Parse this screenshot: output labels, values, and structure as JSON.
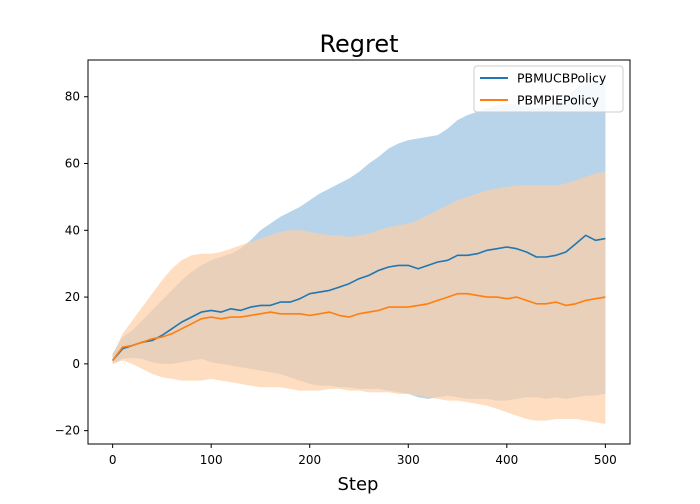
{
  "chart_data": {
    "type": "line",
    "title": "Regret",
    "xlabel": "Step",
    "ylabel": "",
    "xlim": [
      -25,
      525
    ],
    "ylim": [
      -24,
      91
    ],
    "xticks": [
      0,
      100,
      200,
      300,
      400,
      500
    ],
    "yticks": [
      -20,
      0,
      20,
      40,
      60,
      80
    ],
    "grid": false,
    "legend_position": "top-right",
    "x": [
      0,
      10,
      20,
      30,
      40,
      50,
      60,
      70,
      80,
      90,
      100,
      110,
      120,
      130,
      140,
      150,
      160,
      170,
      180,
      190,
      200,
      210,
      220,
      230,
      240,
      250,
      260,
      270,
      280,
      290,
      300,
      310,
      320,
      330,
      340,
      350,
      360,
      370,
      380,
      390,
      400,
      410,
      420,
      430,
      440,
      450,
      460,
      470,
      480,
      490,
      500
    ],
    "series": [
      {
        "name": "PBMUCBPolicy",
        "color": "#1f77b4",
        "band_color": "#b8d4ea",
        "values": [
          1,
          4.5,
          5.5,
          6.5,
          7,
          8.5,
          10.5,
          12.5,
          14,
          15.5,
          16,
          15.5,
          16.5,
          16,
          17,
          17.5,
          17.5,
          18.5,
          18.5,
          19.5,
          21,
          21.5,
          22,
          23,
          24,
          25.5,
          26.5,
          28,
          29,
          29.5,
          29.5,
          28.5,
          29.5,
          30.5,
          31,
          32.5,
          32.5,
          33,
          34,
          34.5,
          35,
          34.5,
          33.5,
          32,
          32,
          32.5,
          33.5,
          36,
          38.5,
          37,
          37.5
        ],
        "upper": [
          3,
          8,
          10,
          13,
          16,
          19,
          22,
          25,
          27.5,
          29.5,
          31,
          32,
          33,
          34.5,
          37,
          40,
          42,
          44,
          45.5,
          47,
          49,
          51,
          52.5,
          54,
          55.5,
          57.5,
          60,
          62,
          64.5,
          66,
          67,
          67.5,
          68,
          68.5,
          70.5,
          73,
          74.5,
          75.5,
          76.5,
          77.5,
          78,
          77.5,
          77,
          76.5,
          77,
          78.5,
          80,
          82.5,
          84,
          84.5,
          85
        ],
        "lower": [
          0,
          1.5,
          1.8,
          1.5,
          0.5,
          0,
          0,
          0.5,
          1,
          1.5,
          0.5,
          0,
          -0.5,
          -1,
          -1.5,
          -2,
          -2.5,
          -3,
          -4,
          -5,
          -6,
          -6.5,
          -6.5,
          -7,
          -7,
          -7.5,
          -7.5,
          -7.5,
          -8,
          -8.5,
          -9,
          -10,
          -10.5,
          -10,
          -9.5,
          -10,
          -10.5,
          -10.5,
          -10.5,
          -11,
          -11,
          -10.5,
          -10,
          -10,
          -10.5,
          -10,
          -10.5,
          -10,
          -9.5,
          -9.5,
          -9
        ]
      },
      {
        "name": "PBMPIEPolicy",
        "color": "#ff7f0e",
        "band_color": "#fdcfa6",
        "values": [
          1,
          5,
          5.5,
          6.5,
          7.5,
          8,
          9,
          10.5,
          12,
          13.5,
          14,
          13.5,
          14,
          14,
          14.5,
          15,
          15.5,
          15,
          15,
          15,
          14.5,
          15,
          15.5,
          14.5,
          14,
          15,
          15.5,
          16,
          17,
          17,
          17,
          17.5,
          18,
          19,
          20,
          21,
          21,
          20.5,
          20,
          20,
          19.5,
          20,
          19,
          18,
          18,
          18.5,
          17.5,
          18,
          19,
          19.5,
          20
        ],
        "upper": [
          2.5,
          9,
          13,
          17,
          21,
          25,
          28.5,
          31,
          32.5,
          33,
          33,
          33.5,
          34.5,
          35.5,
          36.5,
          37.5,
          38.5,
          39.5,
          40,
          40,
          39.5,
          39,
          38.5,
          38.5,
          38,
          38.5,
          39,
          40,
          41,
          41.5,
          42,
          43,
          44.5,
          46,
          47.5,
          49,
          50,
          51,
          52,
          52.5,
          53,
          53.5,
          53.5,
          53.5,
          53.5,
          53.5,
          54,
          55,
          56,
          57,
          57.5
        ],
        "lower": [
          0,
          1,
          0,
          -1.5,
          -3,
          -4,
          -4.5,
          -5,
          -5,
          -5,
          -4.5,
          -5,
          -5.5,
          -6,
          -6.5,
          -7,
          -7,
          -7,
          -7.5,
          -8,
          -8,
          -8,
          -7.5,
          -7.5,
          -8,
          -8,
          -8.5,
          -8.5,
          -8.5,
          -9,
          -9,
          -9.5,
          -10,
          -10.5,
          -11,
          -11,
          -11.5,
          -12,
          -12.5,
          -13.5,
          -14.5,
          -15.5,
          -16.5,
          -17,
          -17,
          -16.5,
          -16.5,
          -16.5,
          -17,
          -17.5,
          -18
        ]
      }
    ]
  }
}
